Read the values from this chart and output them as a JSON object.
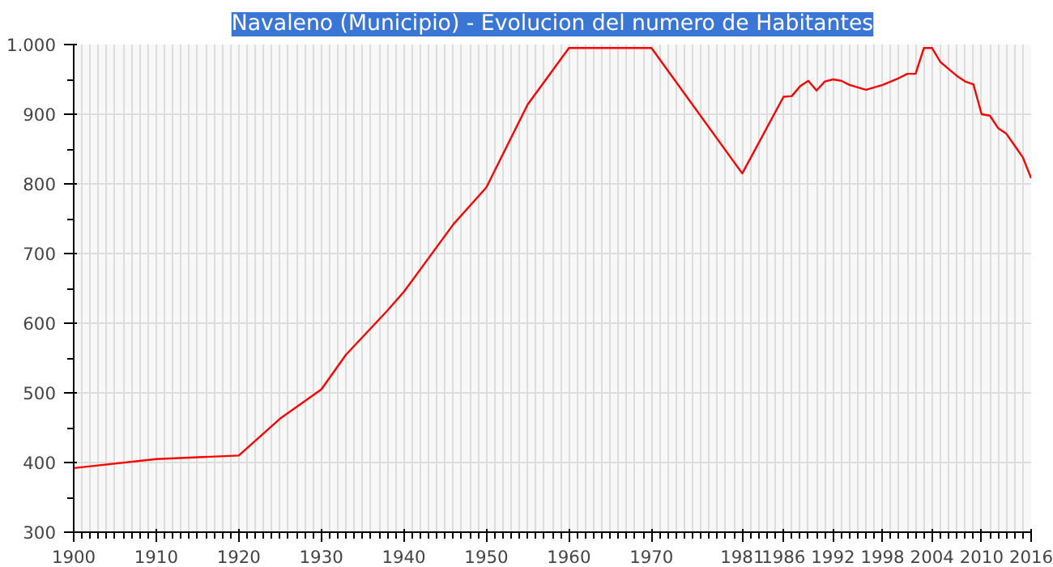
{
  "chart_data": {
    "type": "line",
    "title": "Navaleno (Municipio) - Evolucion del numero de Habitantes",
    "x": [
      1900,
      1910,
      1920,
      1925,
      1930,
      1933,
      1938,
      1940,
      1946,
      1950,
      1955,
      1960,
      1970,
      1981,
      1986,
      1987,
      1988,
      1989,
      1990,
      1991,
      1992,
      1993,
      1994,
      1996,
      1998,
      2000,
      2001,
      2002,
      2003,
      2004,
      2005,
      2006,
      2007,
      2008,
      2009,
      2010,
      2011,
      2012,
      2013,
      2014,
      2015,
      2016
    ],
    "series": [
      {
        "color": "#ff0000",
        "values": [
          392,
          405,
          410,
          463,
          505,
          555,
          618,
          645,
          742,
          795,
          914,
          995,
          995,
          815,
          925,
          926,
          940,
          948,
          934,
          947,
          950,
          948,
          942,
          935,
          942,
          952,
          958,
          958,
          995,
          995,
          975,
          965,
          955,
          947,
          943,
          900,
          898,
          880,
          872,
          855,
          838,
          808
        ]
      }
    ],
    "xlim": [
      1900,
      2016
    ],
    "ylim": [
      300,
      1000
    ],
    "xticks": [
      1900,
      1910,
      1920,
      1930,
      1940,
      1950,
      1960,
      1970,
      1981,
      1986,
      1992,
      1998,
      2004,
      2010,
      2016
    ],
    "yticks": [
      300,
      400,
      500,
      600,
      700,
      800,
      900,
      {
        "value": 1000,
        "label": "1.000"
      }
    ],
    "grid": true,
    "marker": "none",
    "line_style": "solid"
  }
}
